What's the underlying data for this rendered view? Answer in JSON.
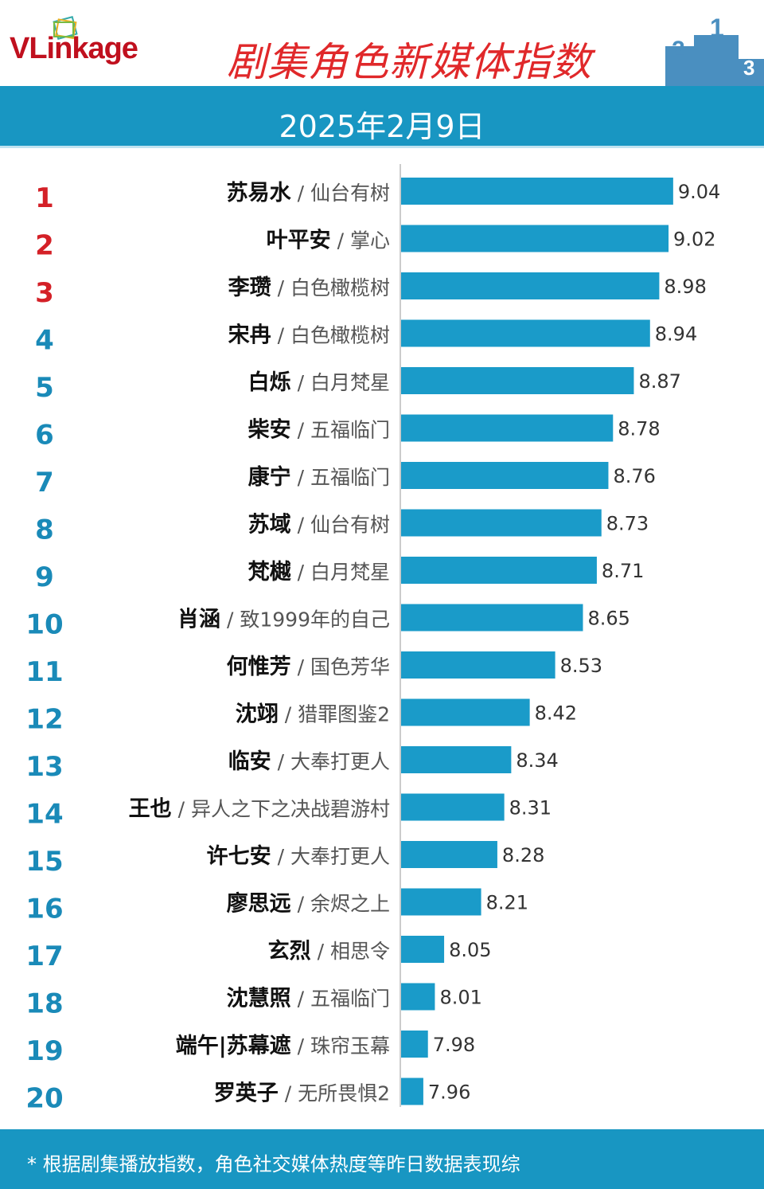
{
  "header": {
    "logo": "VLinkage",
    "title": "剧集角色新媒体指数",
    "date": "2025年2月9日"
  },
  "colors": {
    "bar": "#1a9bc9",
    "top_rank": "#d42027",
    "rank": "#1a8ab8",
    "band": "#1896c2",
    "title": "#e0282a"
  },
  "footer": {
    "note": "* 根据剧集播放指数，角色社交媒体热度等昨日数据表现综"
  },
  "chart_data": {
    "type": "bar",
    "orientation": "horizontal",
    "categories": [
      {
        "rank": "1",
        "role": "苏易水",
        "drama": "仙台有树"
      },
      {
        "rank": "2",
        "role": "叶平安",
        "drama": "掌心"
      },
      {
        "rank": "3",
        "role": "李瓒",
        "drama": "白色橄榄树"
      },
      {
        "rank": "4",
        "role": "宋冉",
        "drama": "白色橄榄树"
      },
      {
        "rank": "5",
        "role": "白烁",
        "drama": "白月梵星"
      },
      {
        "rank": "6",
        "role": "柴安",
        "drama": "五福临门"
      },
      {
        "rank": "7",
        "role": "康宁",
        "drama": "五福临门"
      },
      {
        "rank": "8",
        "role": "苏域",
        "drama": "仙台有树"
      },
      {
        "rank": "9",
        "role": "梵樾",
        "drama": "白月梵星"
      },
      {
        "rank": "10",
        "role": "肖涵",
        "drama": "致1999年的自己"
      },
      {
        "rank": "11",
        "role": "何惟芳",
        "drama": "国色芳华"
      },
      {
        "rank": "12",
        "role": "沈翊",
        "drama": "猎罪图鉴2"
      },
      {
        "rank": "13",
        "role": "临安",
        "drama": "大奉打更人"
      },
      {
        "rank": "14",
        "role": "王也",
        "drama": "异人之下之决战碧游村"
      },
      {
        "rank": "15",
        "role": "许七安",
        "drama": "大奉打更人"
      },
      {
        "rank": "16",
        "role": "廖思远",
        "drama": "余烬之上"
      },
      {
        "rank": "17",
        "role": "玄烈",
        "drama": "相思令"
      },
      {
        "rank": "18",
        "role": "沈慧照",
        "drama": "五福临门"
      },
      {
        "rank": "19",
        "role": "端午|苏幕遮",
        "drama": "珠帘玉幕"
      },
      {
        "rank": "20",
        "role": "罗英子",
        "drama": "无所畏惧2"
      }
    ],
    "values": [
      9.04,
      9.02,
      8.98,
      8.94,
      8.87,
      8.78,
      8.76,
      8.73,
      8.71,
      8.65,
      8.53,
      8.42,
      8.34,
      8.31,
      8.28,
      8.21,
      8.05,
      8.01,
      7.98,
      7.96
    ],
    "xlim": [
      7.864,
      9.3
    ],
    "grid": false
  }
}
